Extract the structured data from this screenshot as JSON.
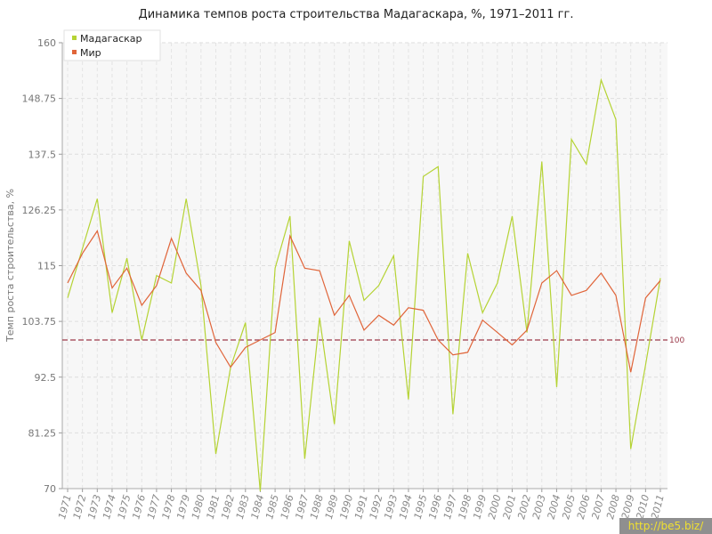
{
  "chart_data": {
    "type": "line",
    "title": "Динамика темпов роста строительства Мадагаскара, %, 1971–2011 гг.",
    "xlabel": "",
    "ylabel": "Темп роста строительства, %",
    "x": [
      "1971",
      "1972",
      "1973",
      "1974",
      "1975",
      "1976",
      "1977",
      "1978",
      "1979",
      "1980",
      "1981",
      "1982",
      "1983",
      "1984",
      "1985",
      "1986",
      "1987",
      "1988",
      "1989",
      "1990",
      "1991",
      "1992",
      "1993",
      "1994",
      "1995",
      "1996",
      "1997",
      "1998",
      "1999",
      "2000",
      "2001",
      "2002",
      "2003",
      "2004",
      "2005",
      "2006",
      "2007",
      "2008",
      "2009",
      "2010",
      "2011"
    ],
    "yticks": [
      "70",
      "81.25",
      "92.5",
      "103.75",
      "115",
      "126.25",
      "137.5",
      "148.75",
      "160"
    ],
    "ylim": [
      70,
      160
    ],
    "grid": true,
    "legend_position": "top-left",
    "reference_line": {
      "value": 100,
      "label": "100",
      "color": "#9b3a4a"
    },
    "series": [
      {
        "name": "Мадагаскар",
        "color": "#b5d334",
        "values": [
          108.5,
          118.5,
          128.5,
          105.5,
          116.5,
          100.0,
          113.0,
          111.5,
          128.5,
          111.0,
          77.0,
          94.5,
          103.5,
          69.5,
          114.5,
          125.0,
          76.0,
          104.5,
          83.0,
          120.0,
          108.0,
          111.0,
          117.0,
          88.0,
          133.0,
          135.0,
          85.0,
          117.5,
          105.5,
          111.5,
          125.0,
          101.5,
          136.0,
          90.5,
          140.5,
          135.5,
          152.5,
          144.5,
          78.0,
          95.0,
          112.5
        ]
      },
      {
        "name": "Мир",
        "color": "#e0653a",
        "values": [
          111.5,
          117.5,
          122.0,
          110.5,
          114.5,
          107.0,
          111.0,
          120.5,
          113.5,
          110.0,
          99.5,
          94.5,
          98.5,
          100.0,
          101.5,
          121.0,
          114.5,
          114.0,
          105.0,
          109.0,
          102.0,
          105.0,
          103.0,
          106.5,
          106.0,
          100.0,
          97.0,
          97.5,
          104.0,
          101.5,
          99.0,
          102.0,
          111.5,
          114.0,
          109.0,
          110.0,
          113.5,
          109.0,
          93.5,
          108.5,
          112.0
        ]
      }
    ]
  },
  "watermark": "http://be5.biz/"
}
